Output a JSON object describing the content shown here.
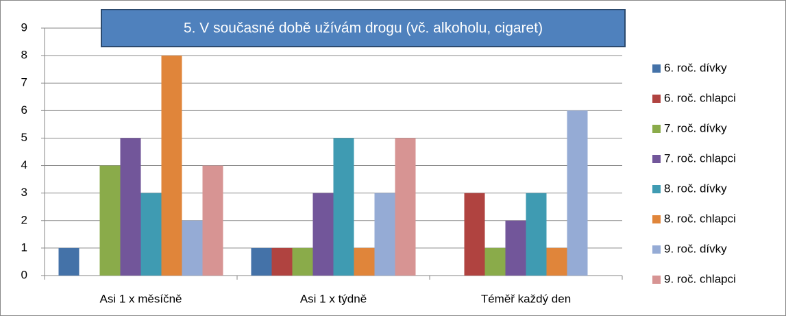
{
  "chart_data": {
    "type": "bar",
    "title": "5. V současné době užívám drogu (vč. alkoholu, cigaret)",
    "categories": [
      "Asi 1 x měsíčně",
      "Asi 1 x týdně",
      "Téměř každý den"
    ],
    "series": [
      {
        "name": "6. roč. dívky",
        "color": "#4472a8",
        "values": [
          1,
          1,
          0
        ]
      },
      {
        "name": "6. roč. chlapci",
        "color": "#b04340",
        "values": [
          0,
          1,
          3
        ]
      },
      {
        "name": "7. roč. dívky",
        "color": "#8aab4a",
        "values": [
          4,
          1,
          1
        ]
      },
      {
        "name": "7. roč. chlapci",
        "color": "#72569a",
        "values": [
          5,
          3,
          2
        ]
      },
      {
        "name": "8. roč. dívky",
        "color": "#3f9bb2",
        "values": [
          3,
          5,
          3
        ]
      },
      {
        "name": "8. roč. chlapci",
        "color": "#e0853a",
        "values": [
          8,
          1,
          1
        ]
      },
      {
        "name": "9. roč. dívky",
        "color": "#95abd5",
        "values": [
          2,
          3,
          6
        ]
      },
      {
        "name": "9. roč. chlapci",
        "color": "#d79493",
        "values": [
          4,
          5,
          0
        ]
      }
    ],
    "ylim": [
      0,
      9
    ],
    "yticks": [
      0,
      1,
      2,
      3,
      4,
      5,
      6,
      7,
      8,
      9
    ],
    "grid": true,
    "legend": "right"
  }
}
